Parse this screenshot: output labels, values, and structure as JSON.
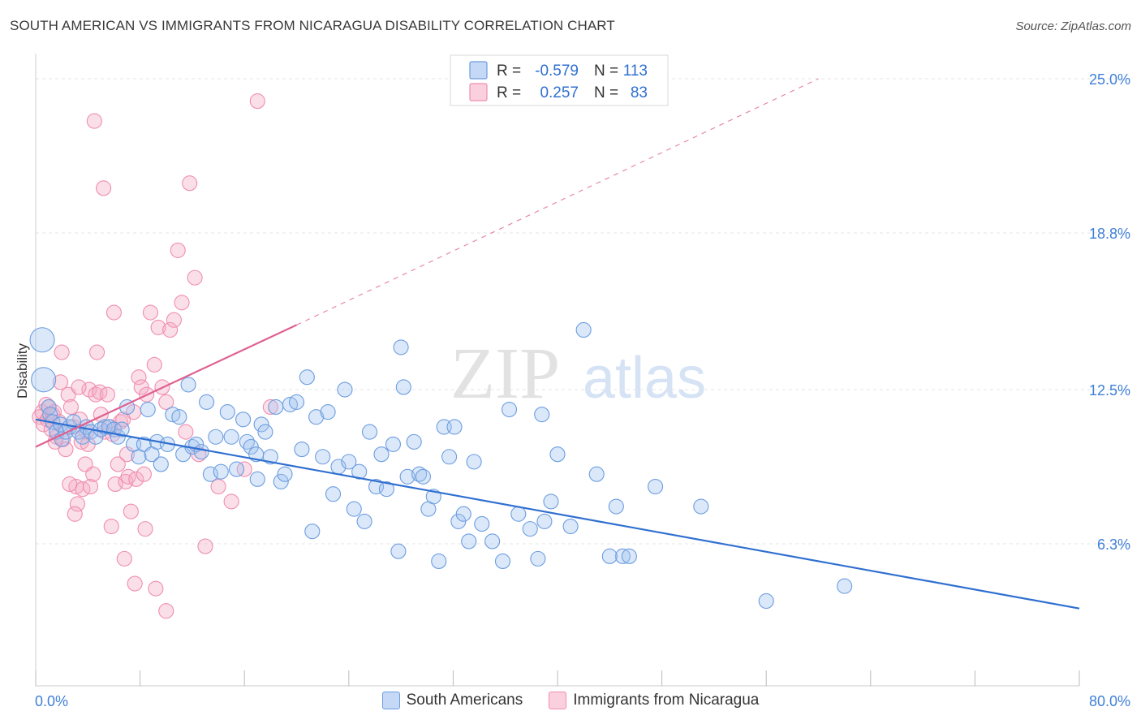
{
  "header": {
    "title": "SOUTH AMERICAN VS IMMIGRANTS FROM NICARAGUA DISABILITY CORRELATION CHART",
    "source": "Source: ZipAtlas.com"
  },
  "watermark": {
    "zip": "ZIP",
    "atlas": "atlas"
  },
  "stats_legend": {
    "rows": [
      {
        "r_label": "R =",
        "r_value": "-0.579",
        "n_label": "N =",
        "n_value": "113"
      },
      {
        "r_label": "R =",
        "r_value": "0.257",
        "n_label": "N =",
        "n_value": "83"
      }
    ]
  },
  "bottom_legend": {
    "items": [
      {
        "label": "South Americans",
        "color": "#6c9de0"
      },
      {
        "label": "Immigrants from Nicaragua",
        "color": "#f08db0"
      }
    ]
  },
  "chart_data": {
    "type": "scatter",
    "ylabel": "Disability",
    "x_tick_labels": [
      "0.0%",
      "80.0%"
    ],
    "y_tick_labels": [
      "25.0%",
      "18.8%",
      "12.5%",
      "6.3%"
    ],
    "y_ticks": [
      25.0,
      18.8,
      12.5,
      6.3
    ],
    "xlim": [
      0,
      80
    ],
    "ylim": [
      0,
      26
    ],
    "grid": true,
    "colors": {
      "south_americans": "#6c9de0",
      "nicaragua": "#f08db0",
      "line_blue": "#2f6fd0",
      "line_pink": "#e06090",
      "tick_label": "#3f7fd8"
    },
    "series": [
      {
        "name": "South Americans",
        "trend": {
          "x0": 0,
          "y0": 11.3,
          "x1": 80,
          "y1": 3.7
        },
        "points": [
          [
            0.5,
            14.5
          ],
          [
            0.6,
            12.9
          ],
          [
            1.0,
            11.8
          ],
          [
            1.1,
            11.5
          ],
          [
            1.3,
            11.2
          ],
          [
            1.6,
            10.8
          ],
          [
            1.9,
            11.1
          ],
          [
            2.0,
            10.5
          ],
          [
            2.3,
            10.8
          ],
          [
            2.6,
            11.0
          ],
          [
            2.9,
            11.2
          ],
          [
            3.3,
            10.8
          ],
          [
            3.6,
            10.6
          ],
          [
            3.9,
            11.0
          ],
          [
            4.2,
            10.8
          ],
          [
            4.6,
            10.6
          ],
          [
            5.0,
            10.9
          ],
          [
            5.3,
            11.0
          ],
          [
            5.6,
            11.0
          ],
          [
            6.0,
            10.9
          ],
          [
            6.3,
            10.6
          ],
          [
            6.6,
            10.9
          ],
          [
            7.0,
            11.8
          ],
          [
            7.5,
            10.3
          ],
          [
            7.9,
            9.8
          ],
          [
            8.3,
            10.3
          ],
          [
            8.6,
            11.7
          ],
          [
            8.9,
            9.9
          ],
          [
            9.3,
            10.4
          ],
          [
            9.6,
            9.5
          ],
          [
            10.1,
            10.3
          ],
          [
            10.5,
            11.5
          ],
          [
            11.0,
            11.4
          ],
          [
            11.3,
            9.9
          ],
          [
            11.7,
            12.7
          ],
          [
            12.0,
            10.2
          ],
          [
            12.3,
            10.3
          ],
          [
            12.7,
            10.0
          ],
          [
            13.1,
            12.0
          ],
          [
            13.4,
            9.1
          ],
          [
            13.8,
            10.6
          ],
          [
            14.2,
            9.2
          ],
          [
            14.7,
            11.6
          ],
          [
            15.0,
            10.6
          ],
          [
            15.4,
            9.3
          ],
          [
            15.9,
            11.3
          ],
          [
            16.2,
            10.4
          ],
          [
            16.5,
            10.2
          ],
          [
            16.9,
            9.9
          ],
          [
            17.3,
            11.1
          ],
          [
            17.6,
            10.8
          ],
          [
            18.0,
            9.8
          ],
          [
            18.4,
            11.8
          ],
          [
            18.8,
            8.8
          ],
          [
            19.1,
            9.1
          ],
          [
            19.5,
            11.9
          ],
          [
            20.0,
            12.0
          ],
          [
            20.4,
            10.1
          ],
          [
            20.8,
            13.0
          ],
          [
            21.2,
            6.8
          ],
          [
            21.5,
            11.4
          ],
          [
            22.0,
            9.8
          ],
          [
            22.4,
            11.6
          ],
          [
            22.8,
            8.3
          ],
          [
            23.2,
            9.4
          ],
          [
            23.7,
            12.5
          ],
          [
            24.0,
            9.6
          ],
          [
            24.4,
            7.7
          ],
          [
            24.8,
            9.2
          ],
          [
            25.2,
            7.2
          ],
          [
            25.6,
            10.8
          ],
          [
            26.1,
            8.6
          ],
          [
            26.5,
            9.9
          ],
          [
            26.9,
            8.5
          ],
          [
            27.4,
            10.3
          ],
          [
            27.8,
            6.0
          ],
          [
            28.2,
            12.6
          ],
          [
            28.5,
            9.0
          ],
          [
            29.0,
            10.4
          ],
          [
            29.4,
            9.1
          ],
          [
            29.7,
            9.0
          ],
          [
            30.1,
            7.7
          ],
          [
            30.5,
            8.2
          ],
          [
            30.9,
            5.6
          ],
          [
            31.3,
            11.0
          ],
          [
            31.7,
            9.8
          ],
          [
            32.1,
            11.0
          ],
          [
            32.4,
            7.2
          ],
          [
            32.8,
            7.5
          ],
          [
            33.2,
            6.4
          ],
          [
            33.6,
            9.6
          ],
          [
            34.2,
            7.1
          ],
          [
            35.0,
            6.4
          ],
          [
            35.8,
            5.6
          ],
          [
            36.3,
            11.7
          ],
          [
            37.0,
            7.5
          ],
          [
            37.9,
            6.9
          ],
          [
            38.5,
            5.7
          ],
          [
            38.8,
            11.5
          ],
          [
            39.0,
            7.2
          ],
          [
            39.5,
            8.0
          ],
          [
            40.0,
            9.9
          ],
          [
            41.0,
            7.0
          ],
          [
            42.0,
            14.9
          ],
          [
            43.0,
            9.1
          ],
          [
            44.5,
            7.8
          ],
          [
            45.0,
            5.8
          ],
          [
            45.5,
            5.8
          ],
          [
            47.5,
            8.6
          ],
          [
            51.0,
            7.8
          ],
          [
            56.0,
            4.0
          ],
          [
            62.0,
            4.6
          ],
          [
            17.0,
            8.9
          ],
          [
            28.0,
            14.2
          ],
          [
            44.0,
            5.8
          ]
        ]
      },
      {
        "name": "Immigrants from Nicaragua",
        "trend": {
          "x0": 0,
          "y0": 10.2,
          "x1": 20,
          "y1": 15.1,
          "dash_x1": 60,
          "dash_y1": 25.0
        },
        "points": [
          [
            0.3,
            11.4
          ],
          [
            0.5,
            11.6
          ],
          [
            0.6,
            11.1
          ],
          [
            0.8,
            11.9
          ],
          [
            0.9,
            11.3
          ],
          [
            1.0,
            11.8
          ],
          [
            1.2,
            10.9
          ],
          [
            1.3,
            11.5
          ],
          [
            1.4,
            11.6
          ],
          [
            1.6,
            10.6
          ],
          [
            1.8,
            11.2
          ],
          [
            1.9,
            12.8
          ],
          [
            2.1,
            10.5
          ],
          [
            2.3,
            10.1
          ],
          [
            2.5,
            12.3
          ],
          [
            2.7,
            11.8
          ],
          [
            2.9,
            11.0
          ],
          [
            3.1,
            8.6
          ],
          [
            3.2,
            7.9
          ],
          [
            3.4,
            11.3
          ],
          [
            3.5,
            10.4
          ],
          [
            3.6,
            8.5
          ],
          [
            3.8,
            9.5
          ],
          [
            3.9,
            10.8
          ],
          [
            4.1,
            12.5
          ],
          [
            4.2,
            8.6
          ],
          [
            4.4,
            9.1
          ],
          [
            4.6,
            12.3
          ],
          [
            4.7,
            14.0
          ],
          [
            4.9,
            12.4
          ],
          [
            5.0,
            11.5
          ],
          [
            5.3,
            10.8
          ],
          [
            5.5,
            12.3
          ],
          [
            5.7,
            11.0
          ],
          [
            5.9,
            10.7
          ],
          [
            6.1,
            8.7
          ],
          [
            6.3,
            9.5
          ],
          [
            6.5,
            11.2
          ],
          [
            6.7,
            11.3
          ],
          [
            6.9,
            8.8
          ],
          [
            7.1,
            9.0
          ],
          [
            7.3,
            7.6
          ],
          [
            7.5,
            11.6
          ],
          [
            7.7,
            8.9
          ],
          [
            7.9,
            13.0
          ],
          [
            8.1,
            12.6
          ],
          [
            8.3,
            9.1
          ],
          [
            8.5,
            12.3
          ],
          [
            8.8,
            15.6
          ],
          [
            9.1,
            13.5
          ],
          [
            9.4,
            15.0
          ],
          [
            9.7,
            12.6
          ],
          [
            10.0,
            12.0
          ],
          [
            10.3,
            14.9
          ],
          [
            10.6,
            15.3
          ],
          [
            10.9,
            18.1
          ],
          [
            11.2,
            16.0
          ],
          [
            11.5,
            10.8
          ],
          [
            11.8,
            20.8
          ],
          [
            12.2,
            17.0
          ],
          [
            12.5,
            9.9
          ],
          [
            13.0,
            6.2
          ],
          [
            14.0,
            8.6
          ],
          [
            15.0,
            8.0
          ],
          [
            16.0,
            9.3
          ],
          [
            17.0,
            24.1
          ],
          [
            18.0,
            11.8
          ],
          [
            2.0,
            14.0
          ],
          [
            3.0,
            7.5
          ],
          [
            4.5,
            23.3
          ],
          [
            5.2,
            20.6
          ],
          [
            6.0,
            15.6
          ],
          [
            6.8,
            5.7
          ],
          [
            7.6,
            4.7
          ],
          [
            8.4,
            6.9
          ],
          [
            9.2,
            4.5
          ],
          [
            10.0,
            3.6
          ],
          [
            4.0,
            10.3
          ],
          [
            2.6,
            8.7
          ],
          [
            5.8,
            7.0
          ],
          [
            7.0,
            9.9
          ],
          [
            1.5,
            10.4
          ],
          [
            3.3,
            12.6
          ]
        ]
      }
    ]
  }
}
